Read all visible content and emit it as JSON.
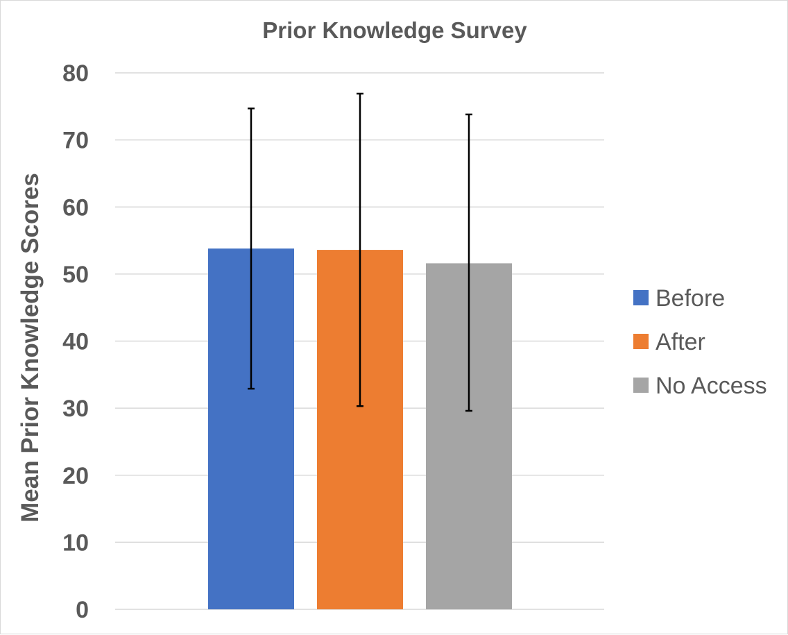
{
  "chart_data": {
    "type": "bar",
    "title": "Prior Knowledge Survey",
    "xlabel": "",
    "ylabel": "Mean Prior Knowledge Scores",
    "ylim": [
      0,
      80
    ],
    "yticks": [
      0,
      10,
      20,
      30,
      40,
      50,
      60,
      70,
      80
    ],
    "grid": true,
    "legend_position": "right",
    "series": [
      {
        "name": "Before",
        "value": 53.8,
        "error_low": 32.9,
        "error_high": 74.7,
        "color": "#4472c4"
      },
      {
        "name": "After",
        "value": 53.6,
        "error_low": 30.3,
        "error_high": 76.9,
        "color": "#ed7d31"
      },
      {
        "name": "No Access",
        "value": 51.6,
        "error_low": 29.6,
        "error_high": 73.8,
        "color": "#a5a5a5"
      }
    ]
  }
}
